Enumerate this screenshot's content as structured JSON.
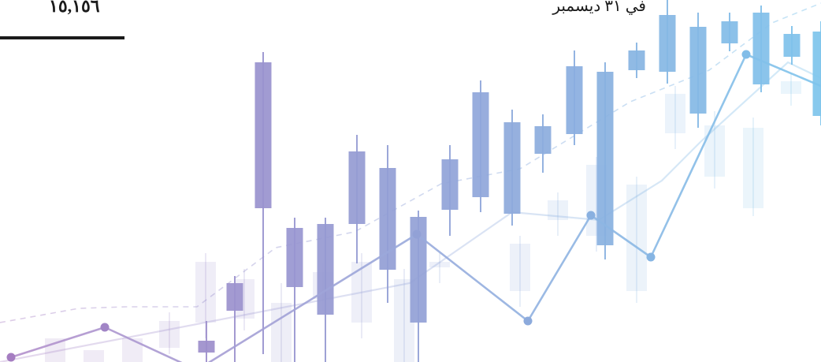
{
  "header": {
    "total_value": "١٥,١٥٦",
    "date_label": "في ٣١ ديسمبر"
  },
  "chart_data": {
    "type": "candlestick",
    "title": "",
    "xlabel": "",
    "ylabel": "",
    "grid": false,
    "legend": "none",
    "ylim": [
      0,
      459
    ],
    "colors": {
      "start": "#a67cc0",
      "end": "#7ec4ec"
    },
    "series": [
      {
        "kind": "candles-foreground",
        "values": [
          {
            "x": 262,
            "open": 27,
            "close": 12,
            "high": 52,
            "low": 0
          },
          {
            "x": 298,
            "open": 100,
            "close": 65,
            "high": 109,
            "low": 0
          },
          {
            "x": 334,
            "open": 380,
            "close": 195,
            "high": 393,
            "low": 10
          },
          {
            "x": 374,
            "open": 170,
            "close": 95,
            "high": 183,
            "low": 0
          },
          {
            "x": 413,
            "open": 175,
            "close": 60,
            "high": 183,
            "low": 0
          },
          {
            "x": 453,
            "open": 267,
            "close": 175,
            "high": 288,
            "low": 125
          },
          {
            "x": 492,
            "open": 246,
            "close": 117,
            "high": 275,
            "low": 75
          },
          {
            "x": 531,
            "open": 184,
            "close": 50,
            "high": 192,
            "low": 0
          },
          {
            "x": 571,
            "open": 257,
            "close": 193,
            "high": 275,
            "low": 160
          },
          {
            "x": 610,
            "open": 342,
            "close": 209,
            "high": 357,
            "low": 190
          },
          {
            "x": 650,
            "open": 304,
            "close": 188,
            "high": 320,
            "low": 173
          },
          {
            "x": 689,
            "open": 299,
            "close": 264,
            "high": 314,
            "low": 240
          },
          {
            "x": 729,
            "open": 375,
            "close": 289,
            "high": 395,
            "low": 275
          },
          {
            "x": 768,
            "open": 368,
            "close": 148,
            "high": 380,
            "low": 130
          },
          {
            "x": 808,
            "open": 395,
            "close": 370,
            "high": 405,
            "low": 360
          },
          {
            "x": 847,
            "open": 440,
            "close": 368,
            "high": 460,
            "low": 353
          },
          {
            "x": 886,
            "open": 425,
            "close": 315,
            "high": 443,
            "low": 297
          },
          {
            "x": 926,
            "open": 432,
            "close": 404,
            "high": 443,
            "low": 394
          },
          {
            "x": 966,
            "open": 443,
            "close": 352,
            "high": 452,
            "low": 342
          },
          {
            "x": 1005,
            "open": 416,
            "close": 387,
            "high": 426,
            "low": 377
          },
          {
            "x": 1042,
            "open": 419,
            "close": 312,
            "high": 432,
            "low": 300
          }
        ]
      },
      {
        "kind": "candles-background",
        "values": [
          {
            "x": 70,
            "open": 0,
            "close": 30,
            "high": 0,
            "low": 0
          },
          {
            "x": 119,
            "open": 0,
            "close": 15,
            "high": 0,
            "low": 0
          },
          {
            "x": 168,
            "open": 0,
            "close": 30,
            "high": 0,
            "low": 0
          },
          {
            "x": 215,
            "open": 18,
            "close": 52,
            "high": 63,
            "low": 10
          },
          {
            "x": 261,
            "open": 50,
            "close": 127,
            "high": 138,
            "low": 30
          },
          {
            "x": 310,
            "open": 55,
            "close": 105,
            "high": 118,
            "low": 40
          },
          {
            "x": 357,
            "open": 0,
            "close": 75,
            "high": 100,
            "low": 0
          },
          {
            "x": 410,
            "open": 80,
            "close": 114,
            "high": 125,
            "low": 65
          },
          {
            "x": 459,
            "open": 50,
            "close": 127,
            "high": 138,
            "low": 30
          },
          {
            "x": 513,
            "open": 0,
            "close": 105,
            "high": 118,
            "low": 0
          },
          {
            "x": 558,
            "open": 120,
            "close": 127,
            "high": 138,
            "low": 100
          },
          {
            "x": 660,
            "open": 90,
            "close": 150,
            "high": 160,
            "low": 70
          },
          {
            "x": 708,
            "open": 180,
            "close": 205,
            "high": 215,
            "low": 160
          },
          {
            "x": 757,
            "open": 160,
            "close": 250,
            "high": 260,
            "low": 140
          },
          {
            "x": 808,
            "open": 90,
            "close": 225,
            "high": 235,
            "low": 75
          },
          {
            "x": 857,
            "open": 290,
            "close": 340,
            "high": 350,
            "low": 270
          },
          {
            "x": 907,
            "open": 235,
            "close": 300,
            "high": 318,
            "low": 220
          },
          {
            "x": 956,
            "open": 195,
            "close": 297,
            "high": 310,
            "low": 185
          },
          {
            "x": 1004,
            "open": 340,
            "close": 356,
            "high": 366,
            "low": 325
          }
        ]
      },
      {
        "kind": "line-strong",
        "points": [
          [
            14,
            6
          ],
          [
            133,
            44
          ],
          [
            250,
            -10
          ],
          [
            529,
            162
          ],
          [
            670,
            52
          ],
          [
            750,
            186
          ],
          [
            826,
            133
          ],
          [
            947,
            390
          ],
          [
            1042,
            350
          ]
        ]
      },
      {
        "kind": "line-light",
        "points": [
          [
            0,
            0
          ],
          [
            520,
            100
          ],
          [
            650,
            190
          ],
          [
            760,
            180
          ],
          [
            840,
            230
          ],
          [
            890,
            280
          ],
          [
            1000,
            380
          ],
          [
            1042,
            360
          ]
        ]
      },
      {
        "kind": "line-dashed",
        "points": [
          [
            0,
            50
          ],
          [
            100,
            68
          ],
          [
            160,
            70
          ],
          [
            250,
            70
          ],
          [
            350,
            145
          ],
          [
            450,
            165
          ],
          [
            560,
            226
          ],
          [
            660,
            245
          ],
          [
            800,
            330
          ],
          [
            900,
            370
          ],
          [
            980,
            430
          ],
          [
            1042,
            455
          ]
        ]
      }
    ]
  }
}
